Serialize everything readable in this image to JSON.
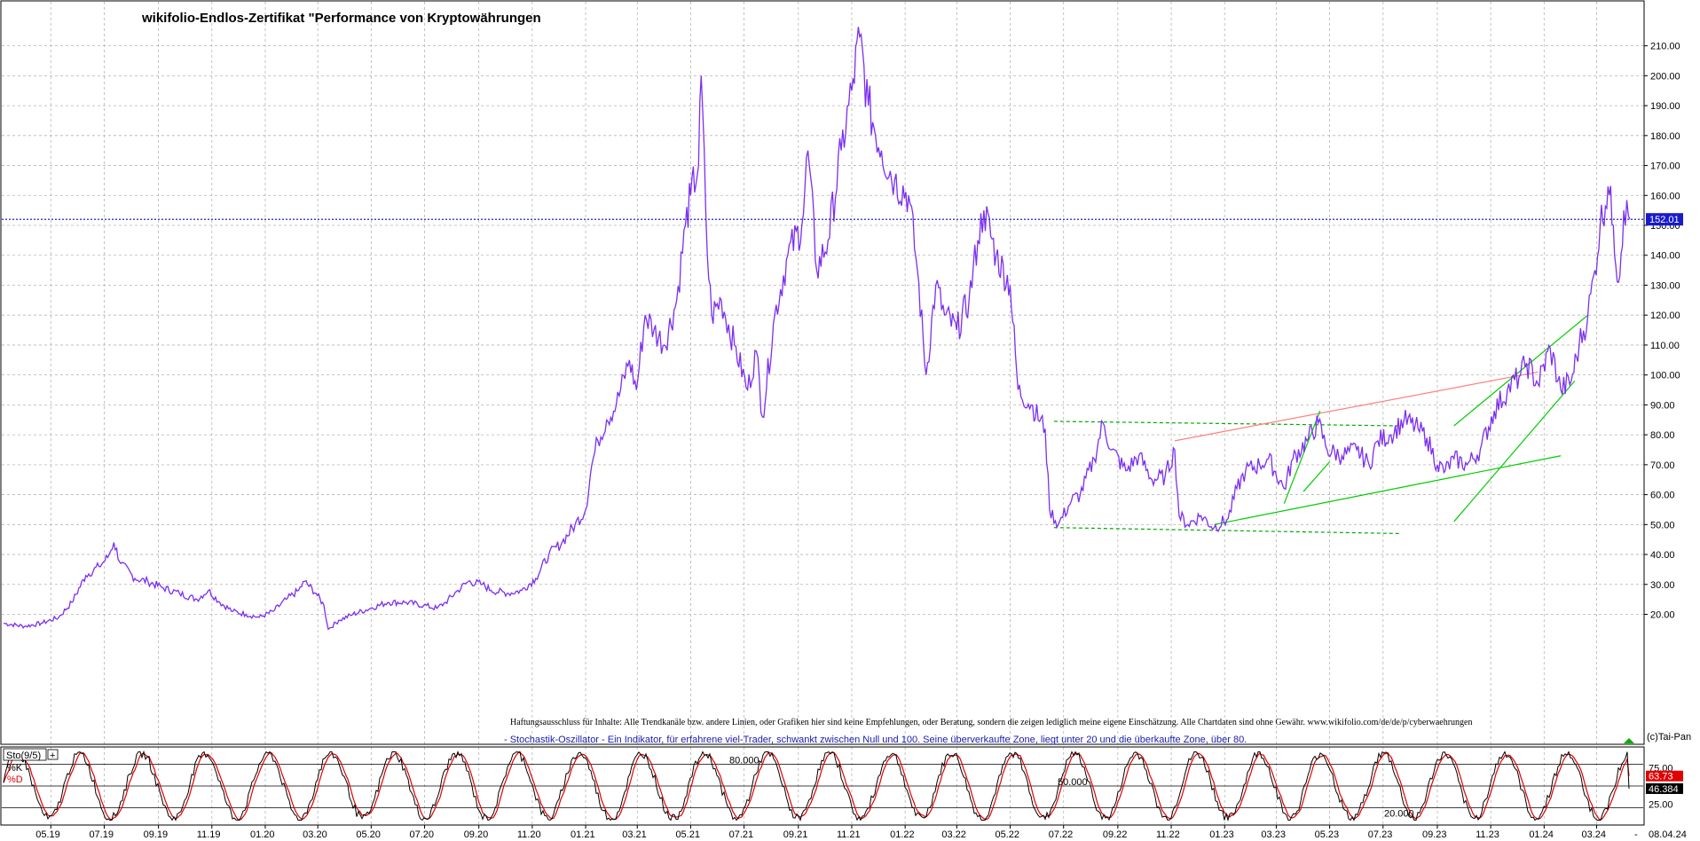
{
  "chart_data": [
    {
      "type": "line",
      "title": "wikifolio-Endlos-Zertifikat \"Performance von Kryptowährungen",
      "xlabel": "",
      "ylabel": "",
      "x_tick_labels": [
        "05.19",
        "07.19",
        "09.19",
        "11.19",
        "01.20",
        "03.20",
        "05.20",
        "07.20",
        "09.20",
        "11.20",
        "01.21",
        "03.21",
        "05.21",
        "07.21",
        "09.21",
        "11.21",
        "01.22",
        "03.22",
        "05.22",
        "07.22",
        "09.22",
        "11.22",
        "01.23",
        "03.23",
        "05.23",
        "07.23",
        "09.23",
        "11.23",
        "01.24",
        "03.24"
      ],
      "y_tick_labels": [
        "20.00",
        "30.00",
        "40.00",
        "50.00",
        "60.00",
        "70.00",
        "80.00",
        "90.00",
        "100.00",
        "110.00",
        "120.00",
        "130.00",
        "140.00",
        "150.00",
        "160.00",
        "170.00",
        "180.00",
        "190.00",
        "200.00",
        "210.00"
      ],
      "ylim": [
        15,
        212
      ],
      "grid": true,
      "series": [
        {
          "color": "#7b2ff0",
          "points": [
            [
              "2019-03-08",
              17
            ],
            [
              "2019-04-01",
              16
            ],
            [
              "2019-04-20",
              17
            ],
            [
              "2019-05-10",
              19
            ],
            [
              "2019-05-25",
              24
            ],
            [
              "2019-06-10",
              33
            ],
            [
              "2019-06-25",
              36
            ],
            [
              "2019-07-05",
              39
            ],
            [
              "2019-07-12",
              44
            ],
            [
              "2019-07-20",
              37
            ],
            [
              "2019-08-05",
              32
            ],
            [
              "2019-08-20",
              31
            ],
            [
              "2019-09-05",
              29
            ],
            [
              "2019-09-25",
              27
            ],
            [
              "2019-10-15",
              25
            ],
            [
              "2019-10-28",
              28
            ],
            [
              "2019-11-10",
              24
            ],
            [
              "2019-11-25",
              21
            ],
            [
              "2019-12-10",
              20
            ],
            [
              "2019-12-25",
              19
            ],
            [
              "2020-01-10",
              21
            ],
            [
              "2020-01-25",
              25
            ],
            [
              "2020-02-08",
              28
            ],
            [
              "2020-02-15",
              31
            ],
            [
              "2020-02-28",
              27
            ],
            [
              "2020-03-08",
              23
            ],
            [
              "2020-03-13",
              15
            ],
            [
              "2020-03-25",
              18
            ],
            [
              "2020-04-10",
              20
            ],
            [
              "2020-04-30",
              22
            ],
            [
              "2020-05-20",
              24
            ],
            [
              "2020-06-10",
              24
            ],
            [
              "2020-06-30",
              23
            ],
            [
              "2020-07-15",
              22
            ],
            [
              "2020-07-25",
              24
            ],
            [
              "2020-08-08",
              28
            ],
            [
              "2020-08-20",
              31
            ],
            [
              "2020-09-05",
              30
            ],
            [
              "2020-09-15",
              28
            ],
            [
              "2020-10-05",
              27
            ],
            [
              "2020-10-20",
              28
            ],
            [
              "2020-11-05",
              32
            ],
            [
              "2020-11-20",
              40
            ],
            [
              "2020-12-05",
              44
            ],
            [
              "2020-12-20",
              50
            ],
            [
              "2021-01-01",
              55
            ],
            [
              "2021-01-08",
              70
            ],
            [
              "2021-01-15",
              78
            ],
            [
              "2021-01-25",
              85
            ],
            [
              "2021-02-05",
              90
            ],
            [
              "2021-02-20",
              105
            ],
            [
              "2021-02-28",
              95
            ],
            [
              "2021-03-10",
              120
            ],
            [
              "2021-03-20",
              115
            ],
            [
              "2021-04-01",
              110
            ],
            [
              "2021-04-15",
              125
            ],
            [
              "2021-04-25",
              150
            ],
            [
              "2021-05-01",
              160
            ],
            [
              "2021-05-10",
              170
            ],
            [
              "2021-05-13",
              200
            ],
            [
              "2021-05-20",
              140
            ],
            [
              "2021-05-25",
              120
            ],
            [
              "2021-06-05",
              125
            ],
            [
              "2021-06-20",
              110
            ],
            [
              "2021-07-05",
              95
            ],
            [
              "2021-07-15",
              108
            ],
            [
              "2021-07-22",
              86
            ],
            [
              "2021-08-05",
              120
            ],
            [
              "2021-08-20",
              140
            ],
            [
              "2021-09-05",
              150
            ],
            [
              "2021-09-12",
              175
            ],
            [
              "2021-09-22",
              135
            ],
            [
              "2021-10-05",
              145
            ],
            [
              "2021-10-20",
              175
            ],
            [
              "2021-11-01",
              195
            ],
            [
              "2021-11-10",
              213
            ],
            [
              "2021-11-20",
              190
            ],
            [
              "2021-12-05",
              175
            ],
            [
              "2021-12-20",
              165
            ],
            [
              "2022-01-05",
              160
            ],
            [
              "2022-01-15",
              135
            ],
            [
              "2022-01-25",
              100
            ],
            [
              "2022-02-05",
              130
            ],
            [
              "2022-02-15",
              120
            ],
            [
              "2022-03-01",
              115
            ],
            [
              "2022-03-15",
              125
            ],
            [
              "2022-03-25",
              145
            ],
            [
              "2022-04-01",
              155
            ],
            [
              "2022-04-15",
              140
            ],
            [
              "2022-05-01",
              130
            ],
            [
              "2022-05-10",
              95
            ],
            [
              "2022-05-25",
              90
            ],
            [
              "2022-06-10",
              82
            ],
            [
              "2022-06-15",
              55
            ],
            [
              "2022-06-25",
              50
            ],
            [
              "2022-07-10",
              58
            ],
            [
              "2022-07-20",
              60
            ],
            [
              "2022-08-05",
              72
            ],
            [
              "2022-08-15",
              84
            ],
            [
              "2022-08-25",
              75
            ],
            [
              "2022-09-10",
              68
            ],
            [
              "2022-09-25",
              73
            ],
            [
              "2022-10-10",
              65
            ],
            [
              "2022-10-25",
              66
            ],
            [
              "2022-11-05",
              75
            ],
            [
              "2022-11-10",
              53
            ],
            [
              "2022-11-20",
              50
            ],
            [
              "2022-12-05",
              53
            ],
            [
              "2022-12-20",
              49
            ],
            [
              "2023-01-05",
              52
            ],
            [
              "2023-01-15",
              62
            ],
            [
              "2023-01-25",
              68
            ],
            [
              "2023-02-10",
              70
            ],
            [
              "2023-02-20",
              72
            ],
            [
              "2023-03-10",
              62
            ],
            [
              "2023-03-20",
              72
            ],
            [
              "2023-04-05",
              78
            ],
            [
              "2023-04-18",
              84
            ],
            [
              "2023-04-28",
              75
            ],
            [
              "2023-05-15",
              73
            ],
            [
              "2023-06-01",
              75
            ],
            [
              "2023-06-15",
              70
            ],
            [
              "2023-06-25",
              78
            ],
            [
              "2023-07-10",
              80
            ],
            [
              "2023-07-25",
              85
            ],
            [
              "2023-08-10",
              82
            ],
            [
              "2023-08-20",
              79
            ],
            [
              "2023-09-01",
              70
            ],
            [
              "2023-09-10",
              68
            ],
            [
              "2023-09-20",
              72
            ],
            [
              "2023-10-05",
              70
            ],
            [
              "2023-10-20",
              75
            ],
            [
              "2023-11-05",
              88
            ],
            [
              "2023-11-20",
              95
            ],
            [
              "2023-12-05",
              100
            ],
            [
              "2023-12-12",
              104
            ],
            [
              "2023-12-25",
              97
            ],
            [
              "2024-01-08",
              109
            ],
            [
              "2024-01-20",
              95
            ],
            [
              "2024-02-01",
              98
            ],
            [
              "2024-02-10",
              110
            ],
            [
              "2024-02-20",
              120
            ],
            [
              "2024-02-28",
              135
            ],
            [
              "2024-03-05",
              150
            ],
            [
              "2024-03-14",
              163
            ],
            [
              "2024-03-20",
              150
            ],
            [
              "2024-03-26",
              131
            ],
            [
              "2024-04-01",
              155
            ],
            [
              "2024-04-08",
              152
            ]
          ]
        }
      ],
      "current_value": "152.01",
      "current_value_level": 152.01,
      "annotations": [
        "Haftungsausschluss für Inhalte: Alle Trendkanäle bzw. andere Linien, oder Grafiken hier sind keine Empfehlungen, oder Beratung, sondern die zeigen lediglich meine eigene Einschätzung. Alle Chartdaten sind ohne Gewähr.  www.wikifolio.com/de/de/p/cyberwaehrungen",
        "- Stochastik-Oszillator - Ein Indikator, für erfahrene viel-Trader, schwankt zwischen Null und 100. Seine überverkaufte Zone, liegt unter 20 und die überkaufte Zone, über 80."
      ],
      "trend_lines": [
        {
          "color": "#00aa00",
          "style": "dashed",
          "from": [
            "2022-06-20",
            84.5
          ],
          "to": [
            "2023-07-20",
            83
          ]
        },
        {
          "color": "#00aa00",
          "style": "dashed",
          "from": [
            "2022-06-20",
            49
          ],
          "to": [
            "2023-07-20",
            47
          ]
        },
        {
          "color": "#00cc00",
          "style": "solid",
          "from": [
            "2022-12-20",
            50
          ],
          "to": [
            "2024-01-20",
            73
          ]
        },
        {
          "color": "#ff8080",
          "style": "solid",
          "from": [
            "2022-11-05",
            78
          ],
          "to": [
            "2023-12-25",
            101
          ]
        },
        {
          "color": "#00cc00",
          "style": "solid",
          "from": [
            "2023-03-10",
            57
          ],
          "to": [
            "2023-04-20",
            88
          ]
        },
        {
          "color": "#00cc00",
          "style": "solid",
          "from": [
            "2023-04-01",
            61
          ],
          "to": [
            "2023-05-01",
            71
          ]
        },
        {
          "color": "#00cc00",
          "style": "solid",
          "from": [
            "2023-09-20",
            83
          ],
          "to": [
            "2024-02-20",
            120
          ]
        },
        {
          "color": "#00cc00",
          "style": "solid",
          "from": [
            "2023-09-20",
            51
          ],
          "to": [
            "2024-02-05",
            98
          ]
        }
      ]
    },
    {
      "type": "line",
      "title": "Sto(9/5)",
      "legend": [
        "%K",
        "%D"
      ],
      "y_tick_labels": [
        "25.00",
        "75.00"
      ],
      "levels": [
        {
          "label": "80.000",
          "value": 80
        },
        {
          "label": "50.000",
          "value": 50
        },
        {
          "label": "20.000",
          "value": 20
        }
      ],
      "ylim": [
        0,
        100
      ],
      "current_values": {
        "D": "63.73",
        "K": "46.384"
      },
      "series": [
        {
          "name": "%K",
          "color": "#000000",
          "shape": "oscillating between 5 and 95 (about 48 cycles across the date range)"
        },
        {
          "name": "%D",
          "color": "#e00000",
          "shape": "smoothed %K, lagging slightly"
        }
      ]
    }
  ],
  "x_axis_end_label": "08.04.24",
  "watermark": "(c)Tai-Pan",
  "colors": {
    "price": "#7b2ff0",
    "current_line": "#2222cc",
    "current_label_bg": "#1a1acc",
    "osc_k": "#000000",
    "osc_d": "#e00000",
    "d_label_bg": "#e00000",
    "k_label_bg": "#000000",
    "grid": "#b4b4b4"
  }
}
